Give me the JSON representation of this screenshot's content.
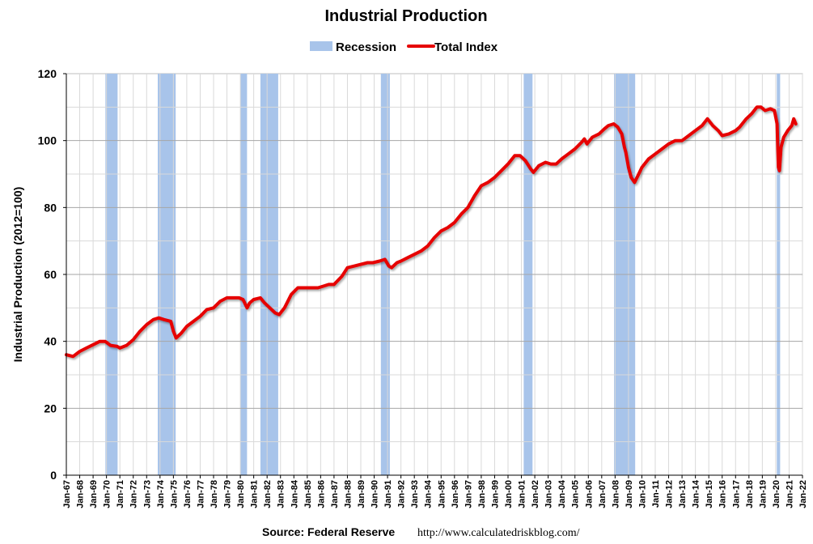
{
  "chart_data": {
    "type": "line",
    "title": "Industrial Production",
    "ylabel": "Industrial Production (2012=100)",
    "xlabel": "",
    "ylim": [
      0,
      120
    ],
    "yticks": [
      0,
      20,
      40,
      60,
      80,
      100,
      120
    ],
    "xlim": [
      1967.0,
      2022.0
    ],
    "grid": true,
    "legend": {
      "position": "top",
      "entries": [
        {
          "name": "Recession",
          "color": "#a8c4ea",
          "kind": "band"
        },
        {
          "name": "Total Index",
          "color": "#e60000",
          "kind": "line"
        }
      ]
    },
    "x_tick_labels": [
      "Jan-67",
      "Jan-68",
      "Jan-69",
      "Jan-70",
      "Jan-71",
      "Jan-72",
      "Jan-73",
      "Jan-74",
      "Jan-75",
      "Jan-76",
      "Jan-77",
      "Jan-78",
      "Jan-79",
      "Jan-80",
      "Jan-81",
      "Jan-82",
      "Jan-83",
      "Jan-84",
      "Jan-85",
      "Jan-86",
      "Jan-87",
      "Jan-88",
      "Jan-89",
      "Jan-90",
      "Jan-91",
      "Jan-92",
      "Jan-93",
      "Jan-94",
      "Jan-95",
      "Jan-96",
      "Jan-97",
      "Jan-98",
      "Jan-99",
      "Jan-00",
      "Jan-01",
      "Jan-02",
      "Jan-03",
      "Jan-04",
      "Jan-05",
      "Jan-06",
      "Jan-07",
      "Jan-08",
      "Jan-09",
      "Jan-10",
      "Jan-11",
      "Jan-12",
      "Jan-13",
      "Jan-14",
      "Jan-15",
      "Jan-16",
      "Jan-17",
      "Jan-18",
      "Jan-19",
      "Jan-20",
      "Jan-21",
      "Jan-22"
    ],
    "x_tick_values": [
      1967,
      1968,
      1969,
      1970,
      1971,
      1972,
      1973,
      1974,
      1975,
      1976,
      1977,
      1978,
      1979,
      1980,
      1981,
      1982,
      1983,
      1984,
      1985,
      1986,
      1987,
      1988,
      1989,
      1990,
      1991,
      1992,
      1993,
      1994,
      1995,
      1996,
      1997,
      1998,
      1999,
      2000,
      2001,
      2002,
      2003,
      2004,
      2005,
      2006,
      2007,
      2008,
      2009,
      2010,
      2011,
      2012,
      2013,
      2014,
      2015,
      2016,
      2017,
      2018,
      2019,
      2020,
      2021,
      2022
    ],
    "recessions": [
      {
        "start": 1969.92,
        "end": 1970.83
      },
      {
        "start": 1973.83,
        "end": 1975.17
      },
      {
        "start": 1980.0,
        "end": 1980.5
      },
      {
        "start": 1981.5,
        "end": 1982.83
      },
      {
        "start": 1990.5,
        "end": 1991.17
      },
      {
        "start": 2001.17,
        "end": 2001.83
      },
      {
        "start": 2007.92,
        "end": 2009.5
      },
      {
        "start": 2020.08,
        "end": 2020.33
      }
    ],
    "series": [
      {
        "name": "Total Index",
        "color": "#e60000",
        "x": [
          1967.0,
          1967.5,
          1968.0,
          1968.5,
          1969.0,
          1969.5,
          1969.9,
          1970.3,
          1970.8,
          1971.0,
          1971.5,
          1972.0,
          1972.5,
          1973.0,
          1973.5,
          1973.9,
          1974.3,
          1974.8,
          1975.0,
          1975.2,
          1975.6,
          1976.0,
          1976.5,
          1977.0,
          1977.5,
          1978.0,
          1978.5,
          1979.0,
          1979.5,
          1979.9,
          1980.2,
          1980.5,
          1980.7,
          1981.0,
          1981.5,
          1981.8,
          1982.2,
          1982.6,
          1982.9,
          1983.3,
          1983.8,
          1984.3,
          1984.8,
          1985.3,
          1985.8,
          1986.2,
          1986.6,
          1987.0,
          1987.6,
          1988.0,
          1988.5,
          1989.0,
          1989.5,
          1989.9,
          1990.4,
          1990.8,
          1991.1,
          1991.3,
          1991.7,
          1992.0,
          1992.5,
          1993.0,
          1993.5,
          1994.0,
          1994.5,
          1995.0,
          1995.5,
          1996.0,
          1996.5,
          1997.0,
          1997.5,
          1998.0,
          1998.5,
          1999.0,
          1999.5,
          2000.0,
          2000.5,
          2000.9,
          2001.3,
          2001.7,
          2001.9,
          2002.3,
          2002.8,
          2003.2,
          2003.6,
          2004.0,
          2004.5,
          2005.0,
          2005.5,
          2005.7,
          2005.9,
          2006.3,
          2006.8,
          2007.2,
          2007.5,
          2007.9,
          2008.2,
          2008.5,
          2008.7,
          2008.8,
          2009.0,
          2009.2,
          2009.45,
          2009.7,
          2010.0,
          2010.5,
          2011.0,
          2011.5,
          2012.0,
          2012.5,
          2013.0,
          2013.5,
          2014.0,
          2014.5,
          2014.9,
          2015.3,
          2015.7,
          2016.0,
          2016.5,
          2017.0,
          2017.3,
          2017.8,
          2018.2,
          2018.6,
          2018.9,
          2019.2,
          2019.6,
          2019.9,
          2020.1,
          2020.2,
          2020.28,
          2020.4,
          2020.6,
          2020.9,
          2021.2,
          2021.35,
          2021.5
        ],
        "values": [
          36.0,
          35.5,
          37.0,
          38.0,
          39.0,
          40.0,
          40.0,
          38.8,
          38.5,
          38.0,
          38.8,
          40.5,
          43.0,
          45.0,
          46.5,
          47.0,
          46.5,
          46.0,
          43.0,
          41.0,
          42.5,
          44.5,
          46.0,
          47.5,
          49.5,
          50.0,
          52.0,
          53.0,
          53.0,
          53.0,
          52.5,
          50.0,
          51.5,
          52.5,
          53.0,
          51.5,
          50.0,
          48.5,
          48.0,
          50.0,
          54.0,
          56.0,
          56.0,
          56.0,
          56.0,
          56.5,
          57.0,
          57.0,
          59.5,
          62.0,
          62.5,
          63.0,
          63.5,
          63.5,
          64.0,
          64.5,
          62.5,
          62.0,
          63.5,
          64.0,
          65.0,
          66.0,
          67.0,
          68.5,
          71.0,
          73.0,
          74.0,
          75.5,
          78.0,
          80.0,
          83.5,
          86.5,
          87.5,
          89.0,
          91.0,
          93.0,
          95.5,
          95.5,
          94.0,
          91.5,
          90.5,
          92.5,
          93.5,
          93.0,
          93.0,
          94.5,
          96.0,
          97.5,
          99.5,
          100.5,
          99.0,
          101.0,
          102.0,
          103.5,
          104.5,
          105.0,
          104.0,
          102.0,
          98.0,
          96.5,
          92.0,
          89.0,
          87.5,
          89.5,
          92.0,
          94.5,
          96.0,
          97.5,
          99.0,
          100.0,
          100.0,
          101.5,
          103.0,
          104.5,
          106.5,
          104.5,
          103.0,
          101.5,
          102.0,
          103.0,
          104.0,
          106.5,
          108.0,
          110.0,
          110.0,
          109.0,
          109.5,
          109.0,
          105.0,
          92.0,
          91.0,
          98.0,
          101.0,
          103.0,
          104.5,
          106.5,
          105.0
        ]
      }
    ]
  },
  "footer": {
    "source_label": "Source: Federal Reserve",
    "source_url": "http://www.calculatedriskblog.com/"
  }
}
